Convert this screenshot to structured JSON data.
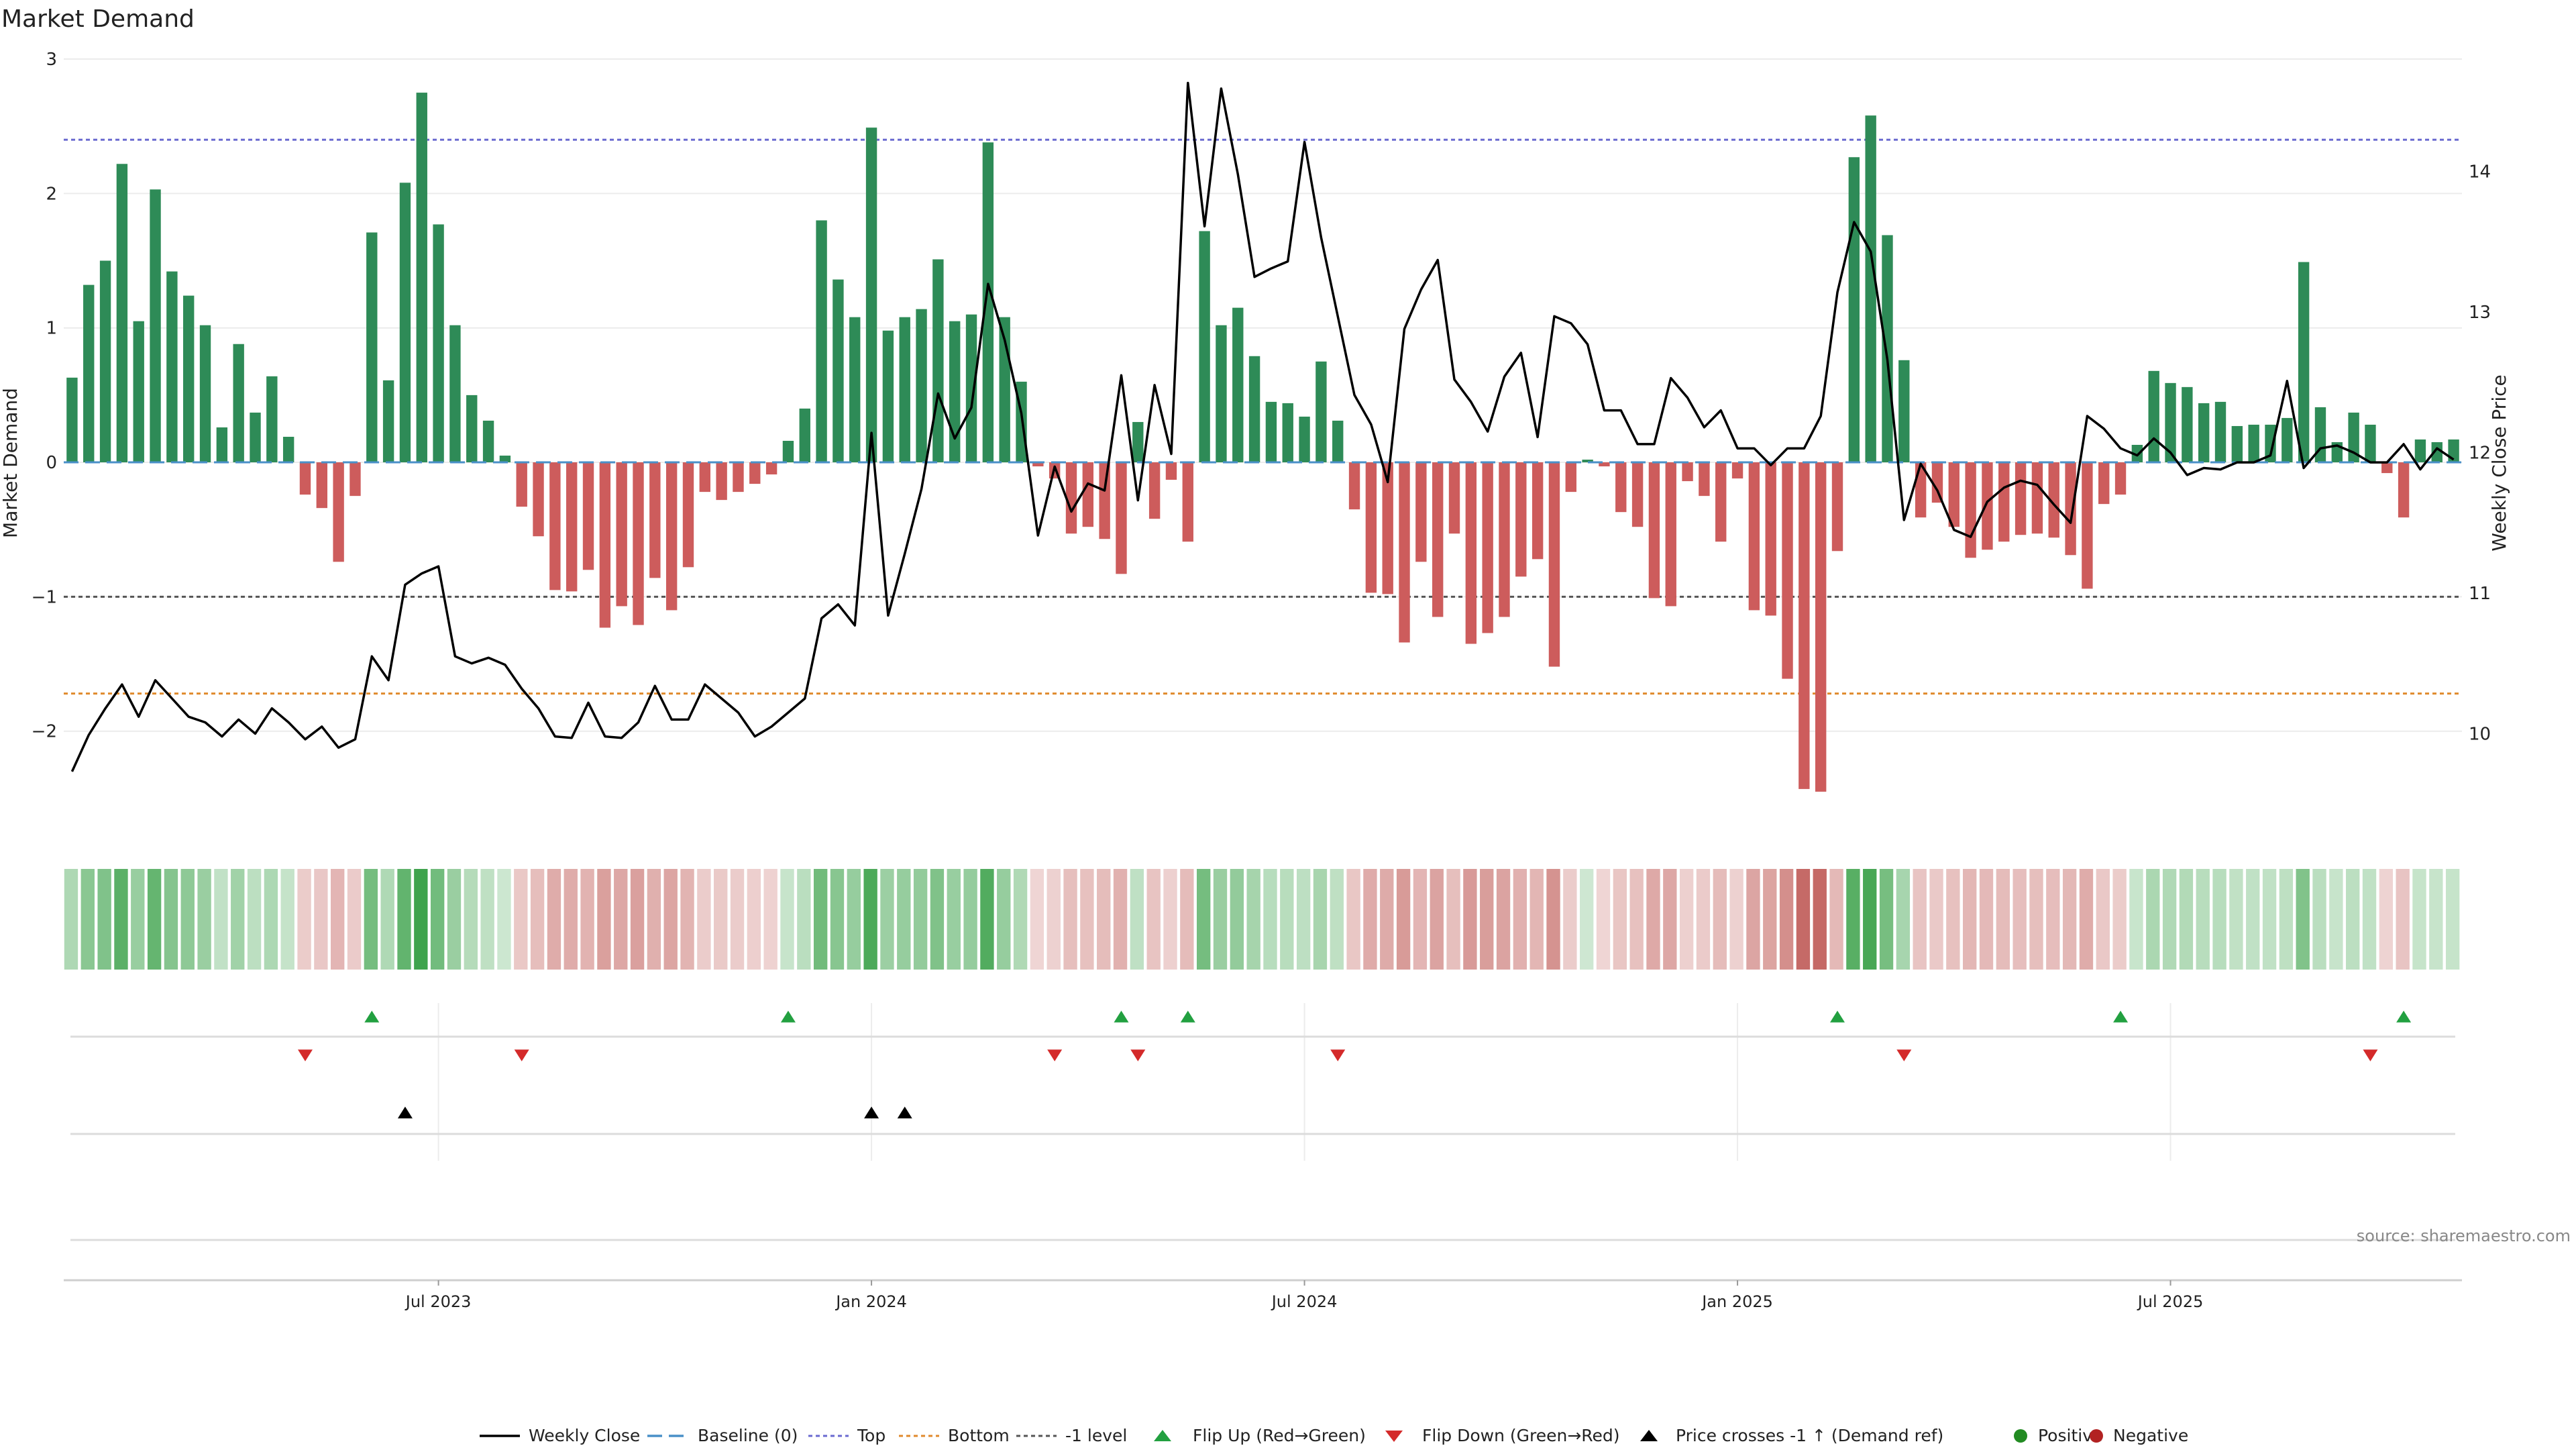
{
  "chart_data": {
    "type": "bar",
    "title": "Market Demand",
    "ylabel": "Market Demand",
    "y2label": "Weekly Close Price",
    "source": "source: sharemaestro.com",
    "ylim": [
      -2.75,
      3
    ],
    "yticks": [
      -2,
      -1,
      0,
      1,
      2,
      3
    ],
    "y2lim": [
      9.3,
      14.8
    ],
    "y2ticks": [
      10,
      11,
      12,
      13,
      14
    ],
    "xticks": [
      "Jul 2023",
      "Jan 2024",
      "Jul 2024",
      "Jan 2025",
      "Jul 2025"
    ],
    "xtick_weeks": [
      22,
      48,
      74,
      100,
      126
    ],
    "levels": {
      "top": 2.4,
      "bottom": -1.72,
      "minus_one": -1,
      "baseline": 0
    },
    "demand": [
      0.63,
      1.32,
      1.5,
      2.22,
      1.05,
      2.03,
      1.42,
      1.24,
      1.02,
      0.26,
      0.88,
      0.37,
      0.64,
      0.19,
      -0.24,
      -0.34,
      -0.74,
      -0.25,
      1.71,
      0.61,
      2.08,
      2.75,
      1.77,
      1.02,
      0.5,
      0.31,
      0.05,
      -0.33,
      -0.55,
      -0.95,
      -0.96,
      -0.8,
      -1.23,
      -1.07,
      -1.21,
      -0.86,
      -1.1,
      -0.78,
      -0.22,
      -0.28,
      -0.22,
      -0.16,
      -0.09,
      0.16,
      0.4,
      1.8,
      1.36,
      1.08,
      2.49,
      0.98,
      1.08,
      1.14,
      1.51,
      1.05,
      1.1,
      2.38,
      1.08,
      0.6,
      -0.03,
      -0.12,
      -0.53,
      -0.48,
      -0.57,
      -0.83,
      0.3,
      -0.42,
      -0.13,
      -0.59,
      1.72,
      1.02,
      1.15,
      0.79,
      0.45,
      0.44,
      0.34,
      0.75,
      0.31,
      -0.35,
      -0.97,
      -0.98,
      -1.34,
      -0.74,
      -1.15,
      -0.53,
      -1.35,
      -1.27,
      -1.15,
      -0.85,
      -0.72,
      -1.52,
      -0.22,
      0.02,
      -0.03,
      -0.37,
      -0.48,
      -1.01,
      -1.07,
      -0.14,
      -0.25,
      -0.59,
      -0.12,
      -1.1,
      -1.14,
      -1.61,
      -2.43,
      -2.45,
      -0.66,
      2.27,
      2.58,
      1.69,
      0.76,
      -0.41,
      -0.3,
      -0.48,
      -0.71,
      -0.65,
      -0.59,
      -0.54,
      -0.53,
      -0.56,
      -0.69,
      -0.94,
      -0.31,
      -0.24,
      0.13,
      0.68,
      0.59,
      0.56,
      0.44,
      0.45,
      0.27,
      0.28,
      0.28,
      0.33,
      1.49,
      0.41,
      0.15,
      0.37,
      0.28,
      -0.08,
      -0.41,
      0.17,
      0.15,
      0.17
    ],
    "price": [
      9.73,
      9.99,
      10.18,
      10.35,
      10.12,
      10.38,
      10.25,
      10.12,
      10.08,
      9.98,
      10.1,
      10.0,
      10.18,
      10.08,
      9.96,
      10.05,
      9.9,
      9.96,
      10.55,
      10.38,
      11.06,
      11.14,
      11.19,
      10.55,
      10.5,
      10.54,
      10.49,
      10.32,
      10.18,
      9.98,
      9.97,
      10.22,
      9.98,
      9.97,
      10.08,
      10.34,
      10.1,
      10.1,
      10.35,
      10.25,
      10.15,
      9.98,
      10.05,
      10.15,
      10.25,
      10.82,
      10.92,
      10.77,
      12.14,
      10.84,
      11.28,
      11.74,
      12.42,
      12.1,
      12.32,
      13.2,
      12.8,
      12.28,
      11.41,
      11.9,
      11.58,
      11.78,
      11.73,
      12.55,
      11.66,
      12.48,
      11.99,
      14.63,
      13.61,
      14.59,
      13.98,
      13.25,
      13.31,
      13.36,
      14.21,
      13.53,
      12.97,
      12.41,
      12.2,
      11.79,
      12.88,
      13.16,
      13.37,
      12.52,
      12.36,
      12.15,
      12.54,
      12.71,
      12.11,
      12.97,
      12.92,
      12.77,
      12.3,
      12.3,
      12.06,
      12.06,
      12.53,
      12.39,
      12.18,
      12.3,
      12.03,
      12.03,
      11.91,
      12.03,
      12.03,
      12.26,
      13.14,
      13.64,
      13.43,
      12.66,
      11.52,
      11.92,
      11.73,
      11.45,
      11.4,
      11.65,
      11.75,
      11.8,
      11.77,
      11.63,
      11.5,
      12.26,
      12.17,
      12.03,
      11.98,
      12.1,
      12.0,
      11.84,
      11.89,
      11.88,
      11.93,
      11.93,
      11.98,
      12.51,
      11.89,
      12.03,
      12.05,
      12.0,
      11.93,
      11.93,
      12.06,
      11.88,
      12.03,
      11.95
    ],
    "flip_up_weeks": [
      18,
      43,
      63,
      67,
      106,
      123,
      140
    ],
    "flip_down_weeks": [
      14,
      27,
      59,
      64,
      76,
      110,
      138
    ],
    "cross_weeks": [
      20,
      48,
      50
    ],
    "legend": [
      "Weekly Close",
      "Baseline (0)",
      "Top",
      "Bottom",
      "-1 level",
      "Flip Up (Red→Green)",
      "Flip Down (Green→Red)",
      "Price crosses -1 ↑ (Demand ref)",
      "Positive",
      "Negative"
    ],
    "colors": {
      "positive": "#2e8b57",
      "negative": "#cd5c5c",
      "price": "#000000",
      "baseline": "#4a90c8",
      "top": "#6a6ad0",
      "bottom": "#e08a2c",
      "minus_one": "#555555",
      "flip_up": "#22a040",
      "flip_down": "#d42a2a",
      "cross": "#000000",
      "legend_positive": "#228b22",
      "legend_negative": "#b22222"
    }
  }
}
